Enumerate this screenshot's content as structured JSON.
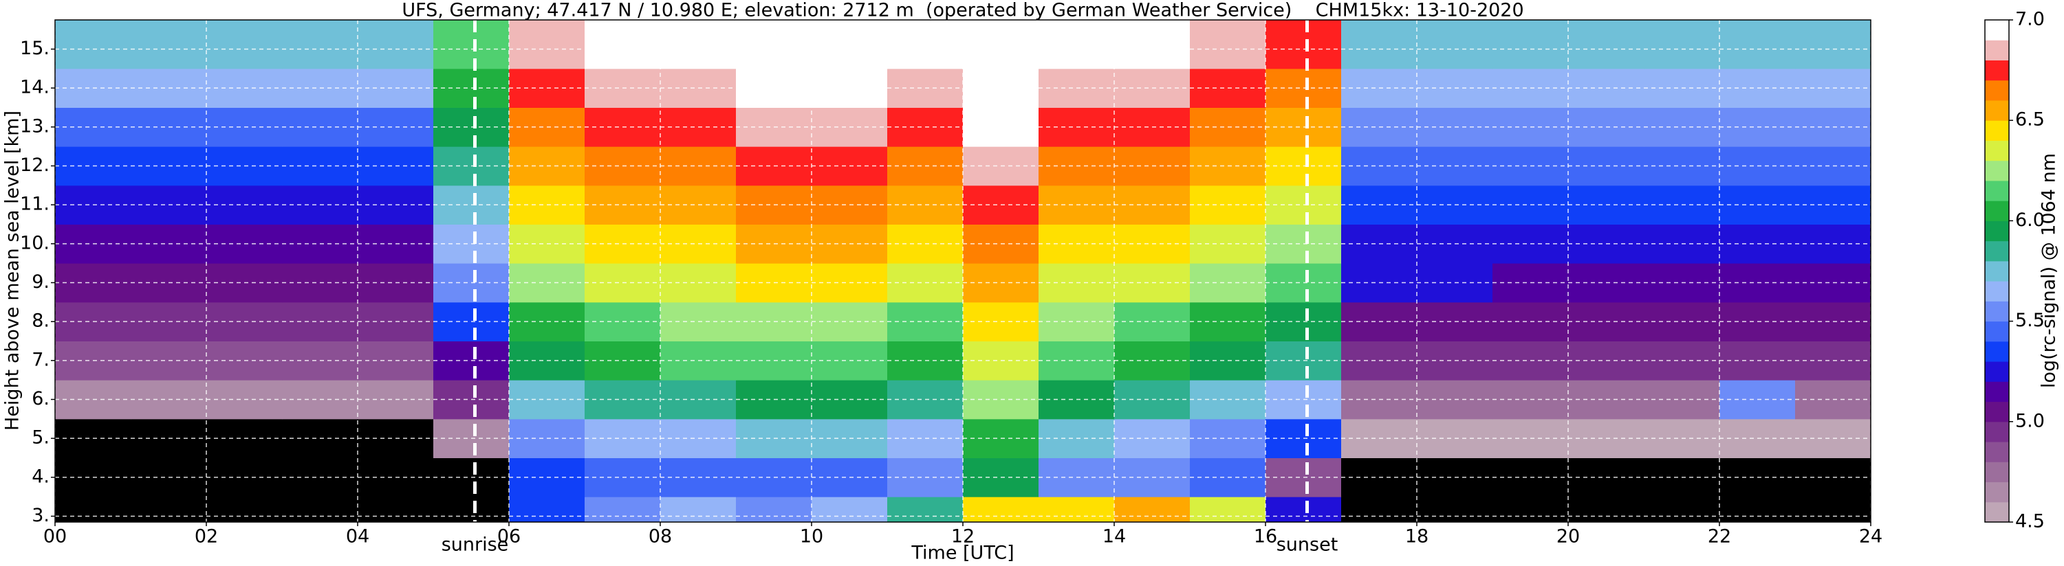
{
  "chart_data": {
    "type": "heatmap",
    "title": "UFS, Germany; 47.417 N / 10.980 E; elevation: 2712 m  (operated by German Weather Service)    CHM15kx: 13-10-2020",
    "x_label": "Time [UTC]",
    "y_label": "Height above mean sea level [km]",
    "xlim": [
      0,
      24
    ],
    "xticks": [
      {
        "value": 0,
        "label": "00"
      },
      {
        "value": 2,
        "label": "02"
      },
      {
        "value": 4,
        "label": "04"
      },
      {
        "value": 6,
        "label": "06"
      },
      {
        "value": 8,
        "label": "08"
      },
      10,
      12,
      14,
      16,
      18,
      20,
      22,
      24
    ],
    "ylim": [
      2.85,
      15.75
    ],
    "yticks": [
      {
        "value": 3,
        "label": "3."
      },
      {
        "value": 4,
        "label": "4."
      },
      {
        "value": 5,
        "label": "5."
      },
      {
        "value": 6,
        "label": "6."
      },
      {
        "value": 7,
        "label": "7."
      },
      {
        "value": 8,
        "label": "8."
      },
      {
        "value": 9,
        "label": "9."
      },
      {
        "value": 10,
        "label": "10."
      },
      {
        "value": 11,
        "label": "11."
      },
      {
        "value": 12,
        "label": "12."
      },
      {
        "value": 13,
        "label": "13."
      },
      {
        "value": 14,
        "label": "14."
      },
      {
        "value": 15,
        "label": "15."
      }
    ],
    "grid": true,
    "x_edges": [
      0,
      1,
      2,
      3,
      4,
      5,
      6,
      7,
      8,
      9,
      10,
      11,
      12,
      13,
      14,
      15,
      16,
      17,
      18,
      19,
      20,
      21,
      22,
      23,
      24
    ],
    "y_edges": [
      2.85,
      3.5,
      4.5,
      5.5,
      6.5,
      7.5,
      8.5,
      9.5,
      10.5,
      11.5,
      12.5,
      13.5,
      14.5,
      15.75
    ],
    "z": [
      [
        4.4,
        4.4,
        4.4,
        4.4,
        4.4,
        4.4,
        5.3,
        5.5,
        5.6,
        5.5,
        5.6,
        5.8,
        6.4,
        6.4,
        6.5,
        6.3,
        5.2,
        4.4,
        4.4,
        4.4,
        4.4,
        4.4,
        4.4,
        4.4
      ],
      [
        4.2,
        4.2,
        4.2,
        4.2,
        4.2,
        4.3,
        5.3,
        5.4,
        5.4,
        5.4,
        5.4,
        5.5,
        5.9,
        5.5,
        5.5,
        5.4,
        4.8,
        4.2,
        4.2,
        4.2,
        4.2,
        4.2,
        4.2,
        4.2
      ],
      [
        4.4,
        4.4,
        4.4,
        4.4,
        4.4,
        4.6,
        5.5,
        5.6,
        5.6,
        5.7,
        5.7,
        5.6,
        6.0,
        5.7,
        5.6,
        5.5,
        5.3,
        4.5,
        4.5,
        4.5,
        4.5,
        4.5,
        4.5,
        4.5
      ],
      [
        4.6,
        4.6,
        4.6,
        4.6,
        4.6,
        4.9,
        5.7,
        5.8,
        5.8,
        5.9,
        5.9,
        5.8,
        6.2,
        5.9,
        5.8,
        5.7,
        5.6,
        4.7,
        4.7,
        4.7,
        4.7,
        4.7,
        5.5,
        4.7
      ],
      [
        4.8,
        4.8,
        4.8,
        4.8,
        4.8,
        5.1,
        5.9,
        6.0,
        6.1,
        6.1,
        6.1,
        6.0,
        6.3,
        6.1,
        6.0,
        5.9,
        5.8,
        4.9,
        4.9,
        4.9,
        4.9,
        4.9,
        4.9,
        4.9
      ],
      [
        4.9,
        4.9,
        4.9,
        4.9,
        4.9,
        5.3,
        6.0,
        6.1,
        6.2,
        6.2,
        6.2,
        6.1,
        6.4,
        6.2,
        6.1,
        6.0,
        5.9,
        5.0,
        5.0,
        5.0,
        5.0,
        5.0,
        5.0,
        5.0
      ],
      [
        5.0,
        5.0,
        5.0,
        5.0,
        5.0,
        5.5,
        6.2,
        6.3,
        6.3,
        6.4,
        6.4,
        6.3,
        6.5,
        6.3,
        6.3,
        6.2,
        6.1,
        5.2,
        5.2,
        5.1,
        5.1,
        5.1,
        5.1,
        5.1
      ],
      [
        5.1,
        5.1,
        5.1,
        5.1,
        5.1,
        5.6,
        6.3,
        6.4,
        6.4,
        6.5,
        6.5,
        6.4,
        6.6,
        6.4,
        6.4,
        6.3,
        6.2,
        5.2,
        5.2,
        5.2,
        5.2,
        5.2,
        5.2,
        5.2
      ],
      [
        5.2,
        5.2,
        5.2,
        5.2,
        5.2,
        5.7,
        6.4,
        6.5,
        6.5,
        6.6,
        6.6,
        6.5,
        6.7,
        6.5,
        6.5,
        6.4,
        6.3,
        5.3,
        5.3,
        5.3,
        5.3,
        5.3,
        5.3,
        5.3
      ],
      [
        5.3,
        5.3,
        5.3,
        5.3,
        5.3,
        5.8,
        6.5,
        6.6,
        6.6,
        6.7,
        6.7,
        6.6,
        6.8,
        6.6,
        6.6,
        6.5,
        6.4,
        5.4,
        5.4,
        5.4,
        5.4,
        5.4,
        5.4,
        5.4
      ],
      [
        5.4,
        5.4,
        5.4,
        5.4,
        5.4,
        5.9,
        6.6,
        6.7,
        6.7,
        6.8,
        6.8,
        6.7,
        6.9,
        6.7,
        6.7,
        6.6,
        6.5,
        5.5,
        5.5,
        5.5,
        5.5,
        5.5,
        5.5,
        5.5
      ],
      [
        5.6,
        5.6,
        5.6,
        5.6,
        5.6,
        6.0,
        6.7,
        6.8,
        6.8,
        6.9,
        6.9,
        6.8,
        6.9,
        6.8,
        6.8,
        6.7,
        6.6,
        5.6,
        5.6,
        5.6,
        5.6,
        5.6,
        5.6,
        5.6
      ],
      [
        5.7,
        5.7,
        5.7,
        5.7,
        5.7,
        6.1,
        6.8,
        6.9,
        6.9,
        6.9,
        6.9,
        6.9,
        7.0,
        6.9,
        6.9,
        6.8,
        6.7,
        5.7,
        5.7,
        5.7,
        5.7,
        5.7,
        5.7,
        5.7
      ]
    ],
    "below_color": "#000000",
    "annotations": [
      {
        "text": "sunrise",
        "x": 5.55
      },
      {
        "text": "sunset",
        "x": 16.55
      }
    ],
    "colorbar": {
      "label": "log(rc-signal) @ 1064 nm",
      "clim": [
        4.5,
        7.0
      ],
      "ticks": [
        4.5,
        {
          "value": 5.0,
          "label": "5.0"
        },
        5.5,
        {
          "value": 6.0,
          "label": "6.0"
        },
        6.5,
        {
          "value": 7.0,
          "label": "7.0"
        }
      ],
      "colors": [
        "#bfa6b6",
        "#ad8aa8",
        "#9c6e9c",
        "#8b5094",
        "#78308c",
        "#661088",
        "#5000a0",
        "#2010d8",
        "#1040f8",
        "#4068f8",
        "#6c8cf8",
        "#94b4f8",
        "#70c0d8",
        "#30b090",
        "#10a050",
        "#20b040",
        "#50d070",
        "#a0e880",
        "#d8f040",
        "#ffe000",
        "#ffa800",
        "#ff8000",
        "#ff2020",
        "#f0b8b8",
        "#ffffff"
      ]
    }
  }
}
